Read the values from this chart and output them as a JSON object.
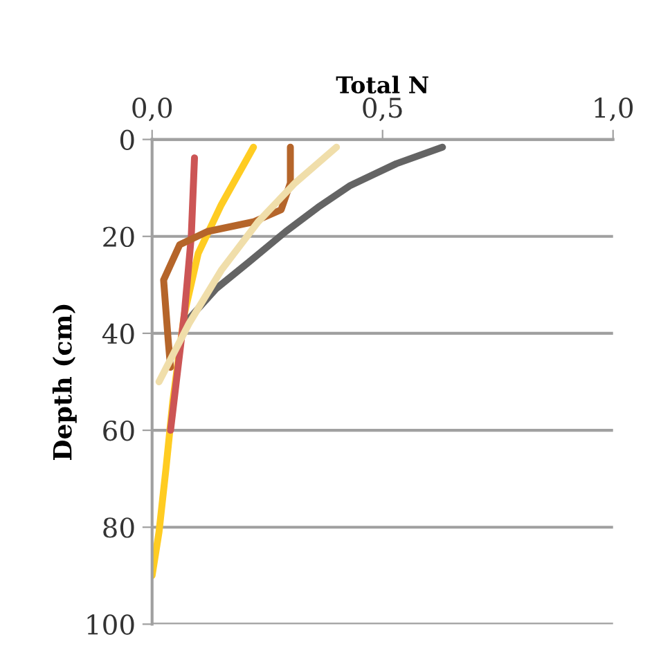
{
  "chart_data": {
    "type": "line",
    "xlabel": "Total N",
    "ylabel": "Depth (cm)",
    "xlim": [
      0,
      1.0
    ],
    "xticks": [
      {
        "value": 0,
        "label": "0,0"
      },
      {
        "value": 0.5,
        "label": "0,5"
      },
      {
        "value": 1.0,
        "label": "1,0"
      }
    ],
    "ylim": [
      100,
      0
    ],
    "yticks": [
      0,
      20,
      40,
      60,
      80,
      100
    ],
    "grid": "y",
    "marker": "none",
    "line_style": "solid",
    "series": [
      {
        "color": "#646464",
        "x": [
          0.63,
          0.53,
          0.43,
          0.36,
          0.29,
          0.21,
          0.14,
          0.08
        ],
        "values": [
          1.6,
          5,
          9.5,
          14,
          19,
          25.3,
          30.7,
          37
        ]
      },
      {
        "color": "#ffcc22",
        "x": [
          0.22,
          0.15,
          0.1,
          0.07,
          0.045,
          0.03,
          0.015,
          0.0
        ],
        "values": [
          1.6,
          13.5,
          23.5,
          36,
          54,
          68,
          81,
          90
        ]
      },
      {
        "color": "#cc5555",
        "x": [
          0.092,
          0.085,
          0.07,
          0.04
        ],
        "values": [
          3.8,
          20,
          36,
          60
        ]
      },
      {
        "color": "#b5652a",
        "x": [
          0.3,
          0.3,
          0.28,
          0.22,
          0.12,
          0.06,
          0.025,
          0.035,
          0.04
        ],
        "values": [
          1.6,
          9,
          14.5,
          17,
          19,
          21.7,
          29,
          41.5,
          47
        ]
      },
      {
        "color": "#f0deaa",
        "x": [
          0.4,
          0.31,
          0.23,
          0.15,
          0.08,
          0.015
        ],
        "values": [
          1.6,
          9,
          17,
          27,
          38,
          50
        ]
      }
    ]
  }
}
